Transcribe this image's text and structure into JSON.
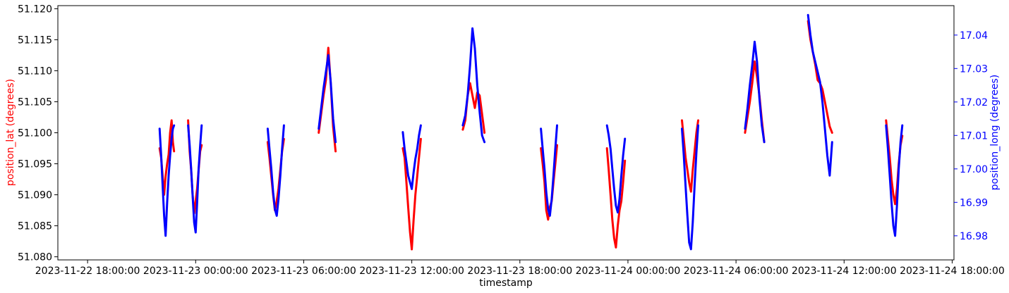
{
  "chart_data": {
    "type": "line",
    "xlabel": "timestamp",
    "ylabel_left": "position_lat (degrees)",
    "ylabel_right": "position_long (degrees)",
    "colors": {
      "lat": "#ff0000",
      "long": "#0000ff",
      "axis": "#000000"
    },
    "x_ticks": [
      "2023-11-22 18:00:00",
      "2023-11-23 00:00:00",
      "2023-11-23 06:00:00",
      "2023-11-23 12:00:00",
      "2023-11-23 18:00:00",
      "2023-11-24 00:00:00",
      "2023-11-24 06:00:00",
      "2023-11-24 12:00:00",
      "2023-11-24 18:00:00"
    ],
    "xlim": [
      "2023-11-22 16:21:00",
      "2023-11-24 18:06:00"
    ],
    "y_left_ticks": [
      "51.080",
      "51.085",
      "51.090",
      "51.095",
      "51.100",
      "51.105",
      "51.110",
      "51.115",
      "51.120"
    ],
    "y_left_lim": [
      51.0795,
      51.1205
    ],
    "y_right_ticks": [
      "16.98",
      "16.99",
      "17.00",
      "17.01",
      "17.02",
      "17.03",
      "17.04"
    ],
    "y_right_lim": [
      16.9728,
      17.0488
    ],
    "series": [
      {
        "name": "position_lat",
        "axis": "left",
        "segments": [
          {
            "x": [
              "2023-11-22 22:00",
              "2023-11-22 22:05",
              "2023-11-22 22:10",
              "2023-11-22 22:15",
              "2023-11-22 22:20",
              "2023-11-22 22:25",
              "2023-11-22 22:30",
              "2023-11-22 22:35",
              "2023-11-22 22:40",
              "2023-11-22 22:44",
              "2023-11-22 22:48"
            ],
            "y": [
              51.0975,
              51.096,
              51.093,
              51.09,
              51.093,
              51.095,
              51.0965,
              51.1,
              51.102,
              51.0985,
              51.097
            ]
          },
          {
            "x": [
              "2023-11-22 23:35",
              "2023-11-22 23:40",
              "2023-11-22 23:45",
              "2023-11-22 23:50",
              "2023-11-22 23:55",
              "2023-11-23 00:00",
              "2023-11-23 00:05",
              "2023-11-23 00:10",
              "2023-11-23 00:15",
              "2023-11-23 00:20"
            ],
            "y": [
              51.102,
              51.097,
              51.094,
              51.09,
              51.087,
              51.089,
              51.091,
              51.094,
              51.097,
              51.098
            ]
          },
          {
            "x": [
              "2023-11-23 04:00",
              "2023-11-23 04:06",
              "2023-11-23 04:12",
              "2023-11-23 04:18",
              "2023-11-23 04:24",
              "2023-11-23 04:30",
              "2023-11-23 04:36",
              "2023-11-23 04:42",
              "2023-11-23 04:48",
              "2023-11-23 04:54"
            ],
            "y": [
              51.0985,
              51.096,
              51.093,
              51.09,
              51.0875,
              51.089,
              51.091,
              51.094,
              51.097,
              51.099
            ]
          },
          {
            "x": [
              "2023-11-23 06:50",
              "2023-11-23 06:58",
              "2023-11-23 07:06",
              "2023-11-23 07:14",
              "2023-11-23 07:22",
              "2023-11-23 07:30",
              "2023-11-23 07:38",
              "2023-11-23 07:46"
            ],
            "y": [
              51.1,
              51.103,
              51.106,
              51.1085,
              51.1137,
              51.108,
              51.101,
              51.097
            ]
          },
          {
            "x": [
              "2023-11-23 11:30",
              "2023-11-23 11:36",
              "2023-11-23 11:42",
              "2023-11-23 11:48",
              "2023-11-23 11:54",
              "2023-11-23 12:00",
              "2023-11-23 12:06",
              "2023-11-23 12:12",
              "2023-11-23 12:18",
              "2023-11-23 12:24",
              "2023-11-23 12:30"
            ],
            "y": [
              51.0975,
              51.096,
              51.092,
              51.088,
              51.084,
              51.0812,
              51.086,
              51.09,
              51.093,
              51.096,
              51.099
            ]
          },
          {
            "x": [
              "2023-11-23 14:50",
              "2023-11-23 14:58",
              "2023-11-23 15:06",
              "2023-11-23 15:14",
              "2023-11-23 15:22",
              "2023-11-23 15:30",
              "2023-11-23 15:38",
              "2023-11-23 15:46",
              "2023-11-23 15:54",
              "2023-11-23 16:02"
            ],
            "y": [
              51.1005,
              51.102,
              51.106,
              51.108,
              51.106,
              51.104,
              51.1065,
              51.106,
              51.103,
              51.1
            ]
          },
          {
            "x": [
              "2023-11-23 19:10",
              "2023-11-23 19:16",
              "2023-11-23 19:22",
              "2023-11-23 19:28",
              "2023-11-23 19:34",
              "2023-11-23 19:40",
              "2023-11-23 19:46",
              "2023-11-23 19:52",
              "2023-11-23 19:58",
              "2023-11-23 20:04"
            ],
            "y": [
              51.0975,
              51.095,
              51.092,
              51.0875,
              51.086,
              51.088,
              51.089,
              51.092,
              51.095,
              51.098
            ]
          },
          {
            "x": [
              "2023-11-23 22:50",
              "2023-11-23 22:56",
              "2023-11-23 23:02",
              "2023-11-23 23:08",
              "2023-11-23 23:14",
              "2023-11-23 23:20",
              "2023-11-23 23:26",
              "2023-11-23 23:32",
              "2023-11-23 23:38",
              "2023-11-23 23:44",
              "2023-11-23 23:50"
            ],
            "y": [
              51.0975,
              51.094,
              51.09,
              51.086,
              51.083,
              51.0815,
              51.085,
              51.0875,
              51.089,
              51.092,
              51.0955
            ]
          },
          {
            "x": [
              "2023-11-24 03:00",
              "2023-11-24 03:06",
              "2023-11-24 03:12",
              "2023-11-24 03:18",
              "2023-11-24 03:24",
              "2023-11-24 03:30",
              "2023-11-24 03:36",
              "2023-11-24 03:42",
              "2023-11-24 03:48",
              "2023-11-24 03:54"
            ],
            "y": [
              51.102,
              51.099,
              51.096,
              51.094,
              51.092,
              51.0905,
              51.094,
              51.097,
              51.1,
              51.102
            ]
          },
          {
            "x": [
              "2023-11-24 06:30",
              "2023-11-24 06:38",
              "2023-11-24 06:46",
              "2023-11-24 06:54",
              "2023-11-24 07:02",
              "2023-11-24 07:10",
              "2023-11-24 07:18",
              "2023-11-24 07:26",
              "2023-11-24 07:34"
            ],
            "y": [
              51.1,
              51.1025,
              51.105,
              51.108,
              51.1115,
              51.109,
              51.106,
              51.102,
              51.0985
            ]
          },
          {
            "x": [
              "2023-11-24 10:00",
              "2023-11-24 10:08",
              "2023-11-24 10:16",
              "2023-11-24 10:24",
              "2023-11-24 10:32",
              "2023-11-24 10:40",
              "2023-11-24 10:48",
              "2023-11-24 10:56",
              "2023-11-24 11:04",
              "2023-11-24 11:12",
              "2023-11-24 11:20"
            ],
            "y": [
              51.118,
              51.115,
              51.113,
              51.111,
              51.1085,
              51.108,
              51.107,
              51.105,
              51.103,
              51.101,
              51.1
            ]
          },
          {
            "x": [
              "2023-11-24 14:20",
              "2023-11-24 14:26",
              "2023-11-24 14:32",
              "2023-11-24 14:38",
              "2023-11-24 14:44",
              "2023-11-24 14:50",
              "2023-11-24 14:56",
              "2023-11-24 15:02",
              "2023-11-24 15:08",
              "2023-11-24 15:14"
            ],
            "y": [
              51.102,
              51.099,
              51.096,
              51.0925,
              51.09,
              51.0885,
              51.091,
              51.095,
              51.098,
              51.0995
            ]
          }
        ]
      },
      {
        "name": "position_long",
        "axis": "right",
        "segments": [
          {
            "x": [
              "2023-11-22 22:00",
              "2023-11-22 22:05",
              "2023-11-22 22:10",
              "2023-11-22 22:15",
              "2023-11-22 22:20",
              "2023-11-22 22:25",
              "2023-11-22 22:30",
              "2023-11-22 22:35",
              "2023-11-22 22:40",
              "2023-11-22 22:44",
              "2023-11-22 22:48"
            ],
            "y": [
              17.012,
              17.004,
              16.995,
              16.986,
              16.98,
              16.99,
              16.998,
              17.004,
              17.009,
              17.012,
              17.013
            ]
          },
          {
            "x": [
              "2023-11-22 23:35",
              "2023-11-22 23:40",
              "2023-11-22 23:45",
              "2023-11-22 23:50",
              "2023-11-22 23:55",
              "2023-11-23 00:00",
              "2023-11-23 00:05",
              "2023-11-23 00:10",
              "2023-11-23 00:15",
              "2023-11-23 00:20"
            ],
            "y": [
              17.013,
              17.007,
              17.0,
              16.992,
              16.984,
              16.981,
              16.99,
              17.0,
              17.007,
              17.013
            ]
          },
          {
            "x": [
              "2023-11-23 04:00",
              "2023-11-23 04:06",
              "2023-11-23 04:12",
              "2023-11-23 04:18",
              "2023-11-23 04:24",
              "2023-11-23 04:30",
              "2023-11-23 04:36",
              "2023-11-23 04:42",
              "2023-11-23 04:48",
              "2023-11-23 04:54"
            ],
            "y": [
              17.012,
              17.006,
              17.0,
              16.993,
              16.988,
              16.986,
              16.991,
              16.998,
              17.006,
              17.013
            ]
          },
          {
            "x": [
              "2023-11-23 06:50",
              "2023-11-23 06:58",
              "2023-11-23 07:06",
              "2023-11-23 07:14",
              "2023-11-23 07:22",
              "2023-11-23 07:30",
              "2023-11-23 07:38",
              "2023-11-23 07:46"
            ],
            "y": [
              17.012,
              17.018,
              17.024,
              17.029,
              17.034,
              17.026,
              17.015,
              17.008
            ]
          },
          {
            "x": [
              "2023-11-23 11:30",
              "2023-11-23 11:36",
              "2023-11-23 11:42",
              "2023-11-23 11:48",
              "2023-11-23 11:54",
              "2023-11-23 12:00",
              "2023-11-23 12:06",
              "2023-11-23 12:12",
              "2023-11-23 12:18",
              "2023-11-23 12:24",
              "2023-11-23 12:30"
            ],
            "y": [
              17.011,
              17.006,
              17.002,
              16.998,
              16.996,
              16.994,
              16.999,
              17.003,
              17.006,
              17.01,
              17.013
            ]
          },
          {
            "x": [
              "2023-11-23 14:50",
              "2023-11-23 14:58",
              "2023-11-23 15:06",
              "2023-11-23 15:14",
              "2023-11-23 15:22",
              "2023-11-23 15:30",
              "2023-11-23 15:38",
              "2023-11-23 15:46",
              "2023-11-23 15:54",
              "2023-11-23 16:02"
            ],
            "y": [
              17.013,
              17.016,
              17.022,
              17.031,
              17.042,
              17.036,
              17.025,
              17.017,
              17.01,
              17.008
            ]
          },
          {
            "x": [
              "2023-11-23 19:10",
              "2023-11-23 19:16",
              "2023-11-23 19:22",
              "2023-11-23 19:28",
              "2023-11-23 19:34",
              "2023-11-23 19:40",
              "2023-11-23 19:46",
              "2023-11-23 19:52",
              "2023-11-23 19:58",
              "2023-11-23 20:04"
            ],
            "y": [
              17.012,
              17.006,
              17.0,
              16.993,
              16.988,
              16.986,
              16.991,
              16.998,
              17.006,
              17.013
            ]
          },
          {
            "x": [
              "2023-11-23 22:50",
              "2023-11-23 22:56",
              "2023-11-23 23:02",
              "2023-11-23 23:08",
              "2023-11-23 23:14",
              "2023-11-23 23:20",
              "2023-11-23 23:26",
              "2023-11-23 23:32",
              "2023-11-23 23:38",
              "2023-11-23 23:44",
              "2023-11-23 23:50"
            ],
            "y": [
              17.013,
              17.01,
              17.006,
              17.0,
              16.994,
              16.989,
              16.987,
              16.991,
              16.998,
              17.004,
              17.009
            ]
          },
          {
            "x": [
              "2023-11-24 03:00",
              "2023-11-24 03:06",
              "2023-11-24 03:12",
              "2023-11-24 03:18",
              "2023-11-24 03:24",
              "2023-11-24 03:30",
              "2023-11-24 03:36",
              "2023-11-24 03:42",
              "2023-11-24 03:48",
              "2023-11-24 03:54"
            ],
            "y": [
              17.012,
              17.004,
              16.995,
              16.986,
              16.978,
              16.976,
              16.984,
              16.995,
              17.005,
              17.013
            ]
          },
          {
            "x": [
              "2023-11-24 06:30",
              "2023-11-24 06:38",
              "2023-11-24 06:46",
              "2023-11-24 06:54",
              "2023-11-24 07:02",
              "2023-11-24 07:10",
              "2023-11-24 07:18",
              "2023-11-24 07:26",
              "2023-11-24 07:34"
            ],
            "y": [
              17.012,
              17.018,
              17.025,
              17.031,
              17.038,
              17.032,
              17.021,
              17.013,
              17.008
            ]
          },
          {
            "x": [
              "2023-11-24 10:00",
              "2023-11-24 10:08",
              "2023-11-24 10:16",
              "2023-11-24 10:24",
              "2023-11-24 10:32",
              "2023-11-24 10:40",
              "2023-11-24 10:48",
              "2023-11-24 10:56",
              "2023-11-24 11:04",
              "2023-11-24 11:12",
              "2023-11-24 11:20"
            ],
            "y": [
              17.046,
              17.04,
              17.035,
              17.032,
              17.029,
              17.026,
              17.02,
              17.012,
              17.004,
              16.998,
              17.008
            ]
          },
          {
            "x": [
              "2023-11-24 14:20",
              "2023-11-24 14:26",
              "2023-11-24 14:32",
              "2023-11-24 14:38",
              "2023-11-24 14:44",
              "2023-11-24 14:50",
              "2023-11-24 14:56",
              "2023-11-24 15:02",
              "2023-11-24 15:08",
              "2023-11-24 15:14"
            ],
            "y": [
              17.013,
              17.006,
              16.998,
              16.99,
              16.983,
              16.98,
              16.989,
              17.0,
              17.008,
              17.013
            ]
          }
        ]
      }
    ]
  }
}
